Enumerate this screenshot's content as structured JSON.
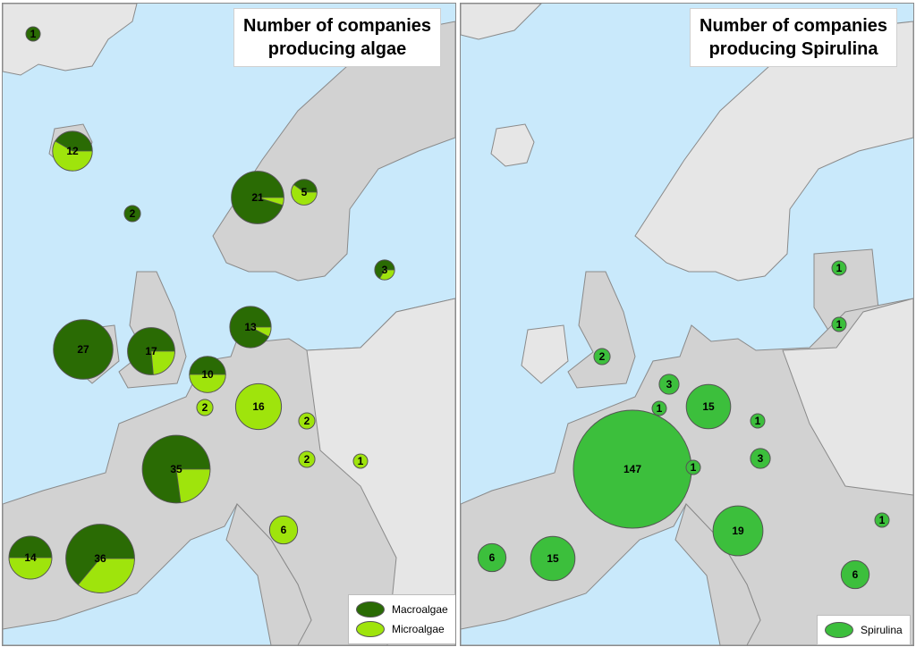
{
  "colors": {
    "sea": "#c9e9fb",
    "land_focus": "#d2d2d2",
    "land_other": "#e6e6e6",
    "border": "#8a8a8a",
    "macroalgae": "#2a6b04",
    "microalgae": "#9fe40c",
    "spirulina": "#3cbf3c"
  },
  "left_panel": {
    "title_line1": "Number of companies",
    "title_line2": "producing algae",
    "legend": {
      "macro_label": "Macroalgae",
      "micro_label": "Microalgae"
    },
    "markers": [
      {
        "region": "greenland",
        "total": 1,
        "macro": 1,
        "micro": 0
      },
      {
        "region": "iceland",
        "total": 12,
        "macro": 5,
        "micro": 7
      },
      {
        "region": "faroe",
        "total": 2,
        "macro": 2,
        "micro": 0
      },
      {
        "region": "norway",
        "total": 21,
        "macro": 20,
        "micro": 1
      },
      {
        "region": "sweden",
        "total": 5,
        "macro": 2,
        "micro": 3
      },
      {
        "region": "estonia",
        "total": 3,
        "macro": 2,
        "micro": 1
      },
      {
        "region": "ireland",
        "total": 27,
        "macro": 27,
        "micro": 0
      },
      {
        "region": "uk",
        "total": 17,
        "macro": 13,
        "micro": 4
      },
      {
        "region": "denmark",
        "total": 13,
        "macro": 12,
        "micro": 1
      },
      {
        "region": "netherlands",
        "total": 10,
        "macro": 5,
        "micro": 5
      },
      {
        "region": "belgium",
        "total": 2,
        "macro": 0,
        "micro": 2
      },
      {
        "region": "germany",
        "total": 16,
        "macro": 0,
        "micro": 16
      },
      {
        "region": "czechia",
        "total": 2,
        "macro": 0,
        "micro": 2
      },
      {
        "region": "austria",
        "total": 2,
        "macro": 0,
        "micro": 2
      },
      {
        "region": "hungary",
        "total": 1,
        "macro": 0,
        "micro": 1
      },
      {
        "region": "france",
        "total": 35,
        "macro": 27,
        "micro": 8
      },
      {
        "region": "italy",
        "total": 6,
        "macro": 0,
        "micro": 6
      },
      {
        "region": "portugal",
        "total": 14,
        "macro": 7,
        "micro": 7
      },
      {
        "region": "spain",
        "total": 36,
        "macro": 23,
        "micro": 13
      }
    ]
  },
  "right_panel": {
    "title_line1": "Number of companies",
    "title_line2": "producing Spirulina",
    "legend": {
      "spirulina_label": "Spirulina"
    },
    "markers": [
      {
        "region": "estonia",
        "total": 1
      },
      {
        "region": "lithuania",
        "total": 1
      },
      {
        "region": "uk",
        "total": 2
      },
      {
        "region": "netherlands",
        "total": 3
      },
      {
        "region": "belgium",
        "total": 1
      },
      {
        "region": "germany",
        "total": 15
      },
      {
        "region": "czechia",
        "total": 1
      },
      {
        "region": "austria",
        "total": 3
      },
      {
        "region": "france",
        "total": 147
      },
      {
        "region": "switzerland",
        "total": 1
      },
      {
        "region": "italy",
        "total": 19
      },
      {
        "region": "bulgaria",
        "total": 1
      },
      {
        "region": "portugal",
        "total": 6
      },
      {
        "region": "spain",
        "total": 15
      },
      {
        "region": "greece",
        "total": 6
      }
    ]
  }
}
